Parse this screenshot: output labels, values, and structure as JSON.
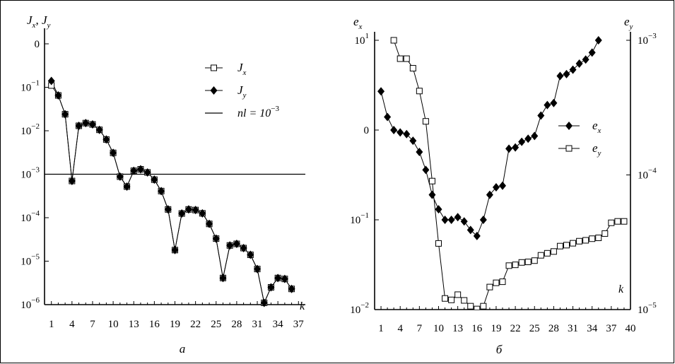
{
  "chart_data": [
    {
      "type": "line",
      "panel_label": "а",
      "yscale": "log",
      "ylim": [
        1e-06,
        1
      ],
      "xlim": [
        0,
        38
      ],
      "ylabel": {
        "base": "J",
        "sub_x": "x",
        "sep": ", ",
        "sub_y": "y"
      },
      "xlabel": "k",
      "xticks": [
        1,
        4,
        7,
        10,
        13,
        16,
        19,
        22,
        25,
        28,
        31,
        34,
        37
      ],
      "yticks": [
        {
          "value": 1,
          "base": "0",
          "exp": ""
        },
        {
          "value": 0.1,
          "base": "10",
          "exp": "−1"
        },
        {
          "value": 0.01,
          "base": "10",
          "exp": "−2"
        },
        {
          "value": 0.001,
          "base": "10",
          "exp": "−3"
        },
        {
          "value": 0.0001,
          "base": "10",
          "exp": "−4"
        },
        {
          "value": 1e-05,
          "base": "10",
          "exp": "−5"
        },
        {
          "value": 1e-06,
          "base": "10",
          "exp": "−6"
        }
      ],
      "legend_position": "top-right",
      "x": [
        1,
        2,
        3,
        4,
        5,
        6,
        7,
        8,
        9,
        10,
        11,
        12,
        13,
        14,
        15,
        16,
        17,
        18,
        19,
        20,
        21,
        22,
        23,
        24,
        25,
        26,
        27,
        28,
        29,
        30,
        31,
        32,
        33,
        34,
        35,
        36
      ],
      "series": [
        {
          "name": "J_x",
          "legend_base": "J",
          "legend_sub": "x",
          "marker": "open-square",
          "values": [
            0.11,
            0.065,
            0.024,
            0.0007,
            0.013,
            0.015,
            0.014,
            0.0105,
            0.0063,
            0.0031,
            0.00088,
            0.00052,
            0.0012,
            0.0013,
            0.0011,
            0.00075,
            0.00041,
            0.000155,
            1.8e-05,
            0.000125,
            0.000155,
            0.00015,
            0.000126,
            7.2e-05,
            3.3e-05,
            4.1e-06,
            2.3e-05,
            2.5e-05,
            2e-05,
            1.4e-05,
            6.6e-06,
            1.1e-06,
            2.5e-06,
            4.1e-06,
            3.9e-06,
            2.3e-06
          ]
        },
        {
          "name": "J_y",
          "legend_base": "J",
          "legend_sub": "y",
          "marker": "filled-diamond",
          "values": [
            0.14,
            0.065,
            0.024,
            0.0007,
            0.013,
            0.015,
            0.014,
            0.0105,
            0.0063,
            0.0031,
            0.00088,
            0.00052,
            0.0012,
            0.0013,
            0.0011,
            0.00075,
            0.00041,
            0.000155,
            1.8e-05,
            0.000125,
            0.000155,
            0.00015,
            0.000126,
            7.2e-05,
            3.3e-05,
            4.1e-06,
            2.3e-05,
            2.5e-05,
            2e-05,
            1.4e-05,
            6.6e-06,
            1.1e-06,
            2.5e-06,
            4.1e-06,
            3.9e-06,
            2.3e-06
          ]
        }
      ],
      "reference_line": {
        "label_text": "nl = 10",
        "label_exp": "−3",
        "value": 0.001
      }
    },
    {
      "type": "line",
      "panel_label": "б",
      "left_yscale": "log",
      "left_ylim": [
        0.01,
        10
      ],
      "right_yscale": "log",
      "right_ylim": [
        1e-05,
        0.001
      ],
      "xlim": [
        0,
        40
      ],
      "left_ylabel": {
        "base": "e",
        "sub": "x"
      },
      "right_ylabel": {
        "base": "e",
        "sub": "y"
      },
      "xlabel": "k",
      "xticks": [
        1,
        4,
        7,
        10,
        13,
        16,
        19,
        22,
        25,
        28,
        31,
        34,
        37,
        40
      ],
      "left_yticks": [
        {
          "value": 10,
          "base": "10",
          "exp": "1"
        },
        {
          "value": 1,
          "base": "0",
          "exp": ""
        },
        {
          "value": 0.1,
          "base": "10",
          "exp": "−1"
        },
        {
          "value": 0.01,
          "base": "10",
          "exp": "−2"
        }
      ],
      "right_yticks": [
        {
          "value": 0.001,
          "base": "10",
          "exp": "−3"
        },
        {
          "value": 0.0001,
          "base": "10",
          "exp": "−4"
        },
        {
          "value": 1e-05,
          "base": "10",
          "exp": "−5"
        }
      ],
      "legend_position": "center-right",
      "series": [
        {
          "name": "e_x",
          "legend_base": "e",
          "legend_sub": "x",
          "marker": "filled-diamond",
          "axis": "left",
          "x": [
            1,
            2,
            3,
            4,
            5,
            6,
            7,
            8,
            9,
            10,
            11,
            12,
            13,
            14,
            15,
            16,
            17,
            18,
            19,
            20,
            21,
            22,
            23,
            24,
            25,
            26,
            27,
            28,
            29,
            30,
            31,
            32,
            33,
            34,
            35
          ],
          "values": [
            2.7,
            1.4,
            1.0,
            0.94,
            0.9,
            0.76,
            0.57,
            0.36,
            0.19,
            0.131,
            0.1,
            0.1,
            0.107,
            0.096,
            0.077,
            0.066,
            0.1,
            0.19,
            0.23,
            0.24,
            0.62,
            0.64,
            0.74,
            0.8,
            0.86,
            1.45,
            1.9,
            2.0,
            4.0,
            4.2,
            4.7,
            5.5,
            6.1,
            7.3,
            10
          ]
        },
        {
          "name": "e_y",
          "legend_base": "e",
          "legend_sub": "y",
          "marker": "open-square",
          "axis": "right",
          "x": [
            3,
            4,
            5,
            6,
            7,
            8,
            9,
            10,
            11,
            12,
            13,
            14,
            15,
            16,
            17,
            18,
            19,
            20,
            21,
            22,
            23,
            24,
            25,
            26,
            27,
            28,
            29,
            30,
            31,
            32,
            33,
            34,
            35,
            36,
            37,
            38,
            39
          ],
          "values": [
            0.001,
            0.00073,
            0.00073,
            0.00062,
            0.00042,
            0.00025,
            9e-05,
            3.1e-05,
            1.21e-05,
            1.18e-05,
            1.29e-05,
            1.17e-05,
            1.06e-05,
            1.01e-05,
            1.06e-05,
            1.47e-05,
            1.58e-05,
            1.61e-05,
            2.12e-05,
            2.15e-05,
            2.24e-05,
            2.26e-05,
            2.31e-05,
            2.53e-05,
            2.62e-05,
            2.7e-05,
            2.96e-05,
            3.01e-05,
            3.11e-05,
            3.22e-05,
            3.27e-05,
            3.36e-05,
            3.41e-05,
            3.67e-05,
            4.41e-05,
            4.52e-05,
            4.52e-05
          ]
        }
      ]
    }
  ]
}
